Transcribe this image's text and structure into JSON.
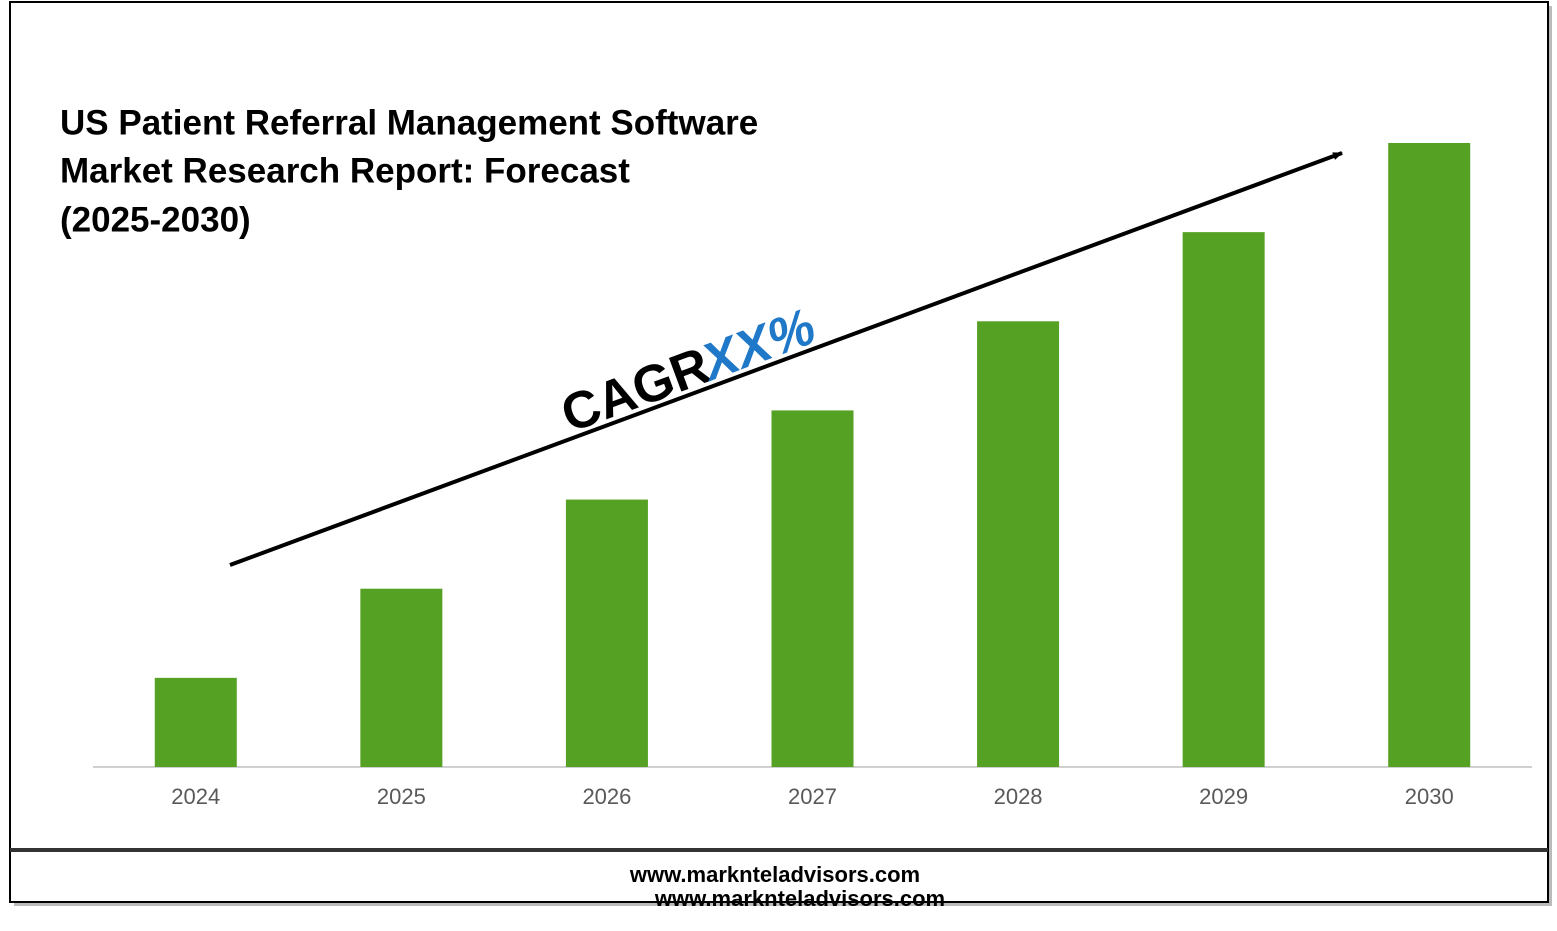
{
  "chart_data": {
    "type": "bar",
    "title": [
      "US Patient Referral Management Software",
      "Market Research Report: Forecast",
      "(2025-2030)"
    ],
    "annotation": {
      "prefix": "CAGR",
      "value": "XX%"
    },
    "categories": [
      "2024",
      "2025",
      "2026",
      "2027",
      "2028",
      "2029",
      "2030"
    ],
    "values": [
      1,
      2,
      3,
      4,
      5,
      6,
      7
    ],
    "color": "#55a123",
    "footer": [
      "www.marknteladvisors.com",
      "www.marknteladvisors.com"
    ]
  }
}
